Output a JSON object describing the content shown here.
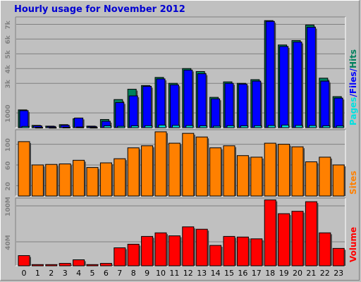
{
  "title": "Hourly usage for November 2012",
  "colors": {
    "pages": "#00e0e0",
    "files": "#0000ff",
    "hits": "#00805c",
    "sites": "#ff8000",
    "volume": "#ff0000",
    "title": "#0000d2",
    "background": "#c0c0c0"
  },
  "legend": {
    "pages": "Pages",
    "files": "Files",
    "hits": "Hits",
    "sep": "/",
    "sites": "Sites",
    "volume": "Volume"
  },
  "chart_data": [
    {
      "type": "bar",
      "panel": "hits-files-pages",
      "categories": [
        "0",
        "1",
        "2",
        "3",
        "4",
        "5",
        "6",
        "7",
        "8",
        "9",
        "10",
        "11",
        "12",
        "13",
        "14",
        "15",
        "16",
        "17",
        "18",
        "19",
        "20",
        "21",
        "22",
        "23"
      ],
      "series": [
        {
          "name": "Hits",
          "values": [
            1200,
            150,
            100,
            200,
            600,
            100,
            550,
            1900,
            2600,
            2850,
            3400,
            3000,
            4000,
            3800,
            2050,
            3100,
            3000,
            3250,
            7250,
            5600,
            5900,
            6950,
            3350,
            2100
          ]
        },
        {
          "name": "Files",
          "values": [
            1150,
            120,
            80,
            160,
            650,
            80,
            430,
            1700,
            2150,
            2800,
            3300,
            2900,
            3900,
            3650,
            1950,
            3000,
            2950,
            3150,
            7200,
            5500,
            5800,
            6800,
            3150,
            2000
          ]
        },
        {
          "name": "Pages",
          "values": [
            80,
            20,
            15,
            30,
            40,
            20,
            120,
            90,
            120,
            130,
            170,
            150,
            140,
            120,
            100,
            130,
            120,
            130,
            140,
            170,
            150,
            140,
            120,
            110
          ]
        }
      ],
      "yticks": [
        "1000",
        "3k",
        "4k",
        "5k",
        "6k",
        "7k"
      ],
      "ylim": [
        0,
        7500
      ]
    },
    {
      "type": "bar",
      "panel": "sites",
      "categories": [
        "0",
        "1",
        "2",
        "3",
        "4",
        "5",
        "6",
        "7",
        "8",
        "9",
        "10",
        "11",
        "12",
        "13",
        "14",
        "15",
        "16",
        "17",
        "18",
        "19",
        "20",
        "21",
        "22",
        "23"
      ],
      "series": [
        {
          "name": "Sites",
          "values": [
            105,
            60,
            61,
            62,
            69,
            55,
            64,
            72,
            93,
            97,
            124,
            102,
            121,
            114,
            93,
            97,
            78,
            75,
            102,
            100,
            95,
            66,
            75,
            60
          ]
        }
      ],
      "yticks": [
        "20",
        "60",
        "100"
      ],
      "ylim": [
        0,
        128
      ]
    },
    {
      "type": "bar",
      "panel": "volume",
      "categories": [
        "0",
        "1",
        "2",
        "3",
        "4",
        "5",
        "6",
        "7",
        "8",
        "9",
        "10",
        "11",
        "12",
        "13",
        "14",
        "15",
        "16",
        "17",
        "18",
        "19",
        "20",
        "21",
        "22",
        "23"
      ],
      "series": [
        {
          "name": "Volume",
          "values": [
            17,
            2,
            2,
            4,
            10,
            2,
            4,
            30,
            36,
            49,
            55,
            50,
            65,
            61,
            34,
            49,
            48,
            45,
            110,
            87,
            91,
            107,
            55,
            29
          ]
        }
      ],
      "yticks": [
        "40M",
        "100M"
      ],
      "ylim": [
        0,
        113
      ]
    }
  ]
}
